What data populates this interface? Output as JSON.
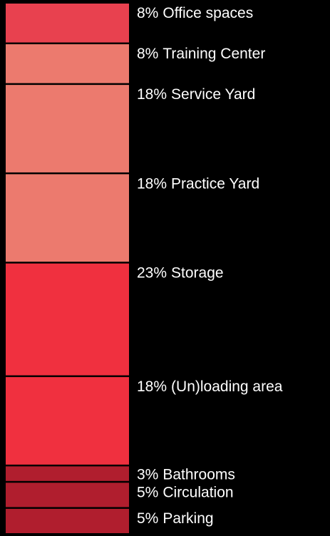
{
  "chart_data": {
    "type": "stacked-bar",
    "categories": [
      "Office spaces",
      "Training Center",
      "Service Yard",
      "Practice Yard",
      "Storage",
      "(Un)loading area",
      "Bathrooms",
      "Circulation",
      "Parking"
    ],
    "values": [
      8,
      8,
      18,
      18,
      23,
      18,
      3,
      5,
      5
    ],
    "value_labels": [
      "8%",
      "8%",
      "18%",
      "18%",
      "23%",
      "18%",
      "3%",
      "5%",
      "5%"
    ],
    "colors": [
      "#e8414f",
      "#ec7a6e",
      "#ec7a6e",
      "#ec7a6e",
      "#f0303f",
      "#f0303f",
      "#b01e2e",
      "#b01e2e",
      "#b01e2e"
    ]
  }
}
